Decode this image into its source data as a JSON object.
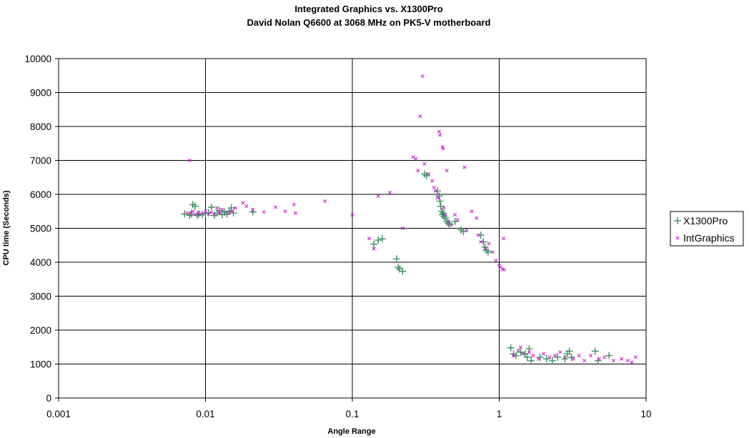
{
  "chart_data": {
    "type": "scatter",
    "title": "Integrated Graphics vs. X1300Pro",
    "subtitle": "David Nolan Q6600 at 3068 MHz on PK5-V motherboard",
    "xlabel": "Angle Range",
    "ylabel": "CPU time (Seconds)",
    "x_scale": "log",
    "xlim": [
      0.001,
      10
    ],
    "ylim": [
      0,
      10000
    ],
    "x_ticks": [
      0.001,
      0.01,
      0.1,
      1,
      10
    ],
    "x_tick_labels": [
      "0.001",
      "0.01",
      "0.1",
      "1",
      "10"
    ],
    "y_ticks": [
      0,
      1000,
      2000,
      3000,
      4000,
      5000,
      6000,
      7000,
      8000,
      9000,
      10000
    ],
    "y_tick_labels": [
      "0",
      "1000",
      "2000",
      "3000",
      "4000",
      "5000",
      "6000",
      "7000",
      "8000",
      "9000",
      "10000"
    ],
    "grid": true,
    "legend_position": "right",
    "series": [
      {
        "name": "X1300Pro",
        "marker": "plus",
        "color": "#2e8b57",
        "points": [
          [
            0.0072,
            5420
          ],
          [
            0.0078,
            5380
          ],
          [
            0.008,
            5420
          ],
          [
            0.0082,
            5700
          ],
          [
            0.0085,
            5650
          ],
          [
            0.0088,
            5380
          ],
          [
            0.009,
            5420
          ],
          [
            0.0095,
            5400
          ],
          [
            0.01,
            5440
          ],
          [
            0.0105,
            5460
          ],
          [
            0.011,
            5620
          ],
          [
            0.0115,
            5380
          ],
          [
            0.012,
            5450
          ],
          [
            0.0125,
            5520
          ],
          [
            0.013,
            5400
          ],
          [
            0.0135,
            5480
          ],
          [
            0.014,
            5420
          ],
          [
            0.0145,
            5500
          ],
          [
            0.015,
            5600
          ],
          [
            0.0155,
            5450
          ],
          [
            0.021,
            5480
          ],
          [
            0.14,
            4530
          ],
          [
            0.15,
            4650
          ],
          [
            0.16,
            4690
          ],
          [
            0.2,
            4100
          ],
          [
            0.205,
            3850
          ],
          [
            0.21,
            3800
          ],
          [
            0.22,
            3730
          ],
          [
            0.31,
            6600
          ],
          [
            0.32,
            6550
          ],
          [
            0.38,
            6100
          ],
          [
            0.39,
            5950
          ],
          [
            0.395,
            5800
          ],
          [
            0.4,
            5650
          ],
          [
            0.405,
            5500
          ],
          [
            0.41,
            5400
          ],
          [
            0.415,
            5450
          ],
          [
            0.42,
            5350
          ],
          [
            0.43,
            5300
          ],
          [
            0.44,
            5200
          ],
          [
            0.45,
            5150
          ],
          [
            0.46,
            5100
          ],
          [
            0.5,
            5200
          ],
          [
            0.55,
            4950
          ],
          [
            0.57,
            4900
          ],
          [
            0.75,
            4800
          ],
          [
            0.78,
            4600
          ],
          [
            0.8,
            4450
          ],
          [
            0.82,
            4350
          ],
          [
            0.84,
            4300
          ],
          [
            1.2,
            1480
          ],
          [
            1.25,
            1300
          ],
          [
            1.3,
            1250
          ],
          [
            1.4,
            1350
          ],
          [
            1.5,
            1300
          ],
          [
            1.55,
            1200
          ],
          [
            1.6,
            1450
          ],
          [
            1.65,
            1100
          ],
          [
            1.9,
            1200
          ],
          [
            2.1,
            1150
          ],
          [
            2.3,
            1100
          ],
          [
            2.5,
            1200
          ],
          [
            2.8,
            1150
          ],
          [
            2.9,
            1300
          ],
          [
            3.0,
            1380
          ],
          [
            3.1,
            1200
          ],
          [
            4.5,
            1380
          ],
          [
            4.7,
            1100
          ],
          [
            5.6,
            1250
          ]
        ]
      },
      {
        "name": "IntGraphics",
        "marker": "x",
        "color": "#cc33cc",
        "points": [
          [
            0.0075,
            5450
          ],
          [
            0.0078,
            7000
          ],
          [
            0.008,
            5450
          ],
          [
            0.0082,
            5500
          ],
          [
            0.0085,
            5400
          ],
          [
            0.009,
            5460
          ],
          [
            0.0095,
            5420
          ],
          [
            0.01,
            5500
          ],
          [
            0.0105,
            5420
          ],
          [
            0.011,
            5470
          ],
          [
            0.0115,
            5400
          ],
          [
            0.012,
            5600
          ],
          [
            0.0125,
            5450
          ],
          [
            0.013,
            5550
          ],
          [
            0.014,
            5440
          ],
          [
            0.015,
            5500
          ],
          [
            0.016,
            5600
          ],
          [
            0.018,
            5750
          ],
          [
            0.019,
            5650
          ],
          [
            0.021,
            5550
          ],
          [
            0.025,
            5480
          ],
          [
            0.03,
            5620
          ],
          [
            0.035,
            5500
          ],
          [
            0.04,
            5700
          ],
          [
            0.041,
            5450
          ],
          [
            0.065,
            5800
          ],
          [
            0.1,
            5400
          ],
          [
            0.13,
            4700
          ],
          [
            0.14,
            4400
          ],
          [
            0.15,
            5950
          ],
          [
            0.18,
            6050
          ],
          [
            0.22,
            5000
          ],
          [
            0.26,
            7100
          ],
          [
            0.27,
            7050
          ],
          [
            0.28,
            6700
          ],
          [
            0.29,
            8300
          ],
          [
            0.3,
            9480
          ],
          [
            0.31,
            6900
          ],
          [
            0.33,
            6600
          ],
          [
            0.35,
            6400
          ],
          [
            0.36,
            6200
          ],
          [
            0.37,
            6100
          ],
          [
            0.38,
            5900
          ],
          [
            0.39,
            7850
          ],
          [
            0.395,
            7750
          ],
          [
            0.41,
            7400
          ],
          [
            0.415,
            7350
          ],
          [
            0.42,
            5600
          ],
          [
            0.43,
            5400
          ],
          [
            0.44,
            6700
          ],
          [
            0.45,
            5200
          ],
          [
            0.47,
            5100
          ],
          [
            0.5,
            5400
          ],
          [
            0.52,
            5250
          ],
          [
            0.58,
            6800
          ],
          [
            0.6,
            4950
          ],
          [
            0.65,
            5500
          ],
          [
            0.7,
            5300
          ],
          [
            0.72,
            4800
          ],
          [
            0.75,
            4600
          ],
          [
            0.8,
            4400
          ],
          [
            0.85,
            4550
          ],
          [
            0.9,
            4300
          ],
          [
            0.95,
            4050
          ],
          [
            1.0,
            3900
          ],
          [
            1.02,
            3850
          ],
          [
            1.05,
            3800
          ],
          [
            1.07,
            4700
          ],
          [
            1.08,
            3780
          ],
          [
            1.25,
            1250
          ],
          [
            1.35,
            1400
          ],
          [
            1.4,
            1500
          ],
          [
            1.45,
            1300
          ],
          [
            1.6,
            1350
          ],
          [
            1.7,
            1250
          ],
          [
            1.85,
            1150
          ],
          [
            2.0,
            1300
          ],
          [
            2.2,
            1200
          ],
          [
            2.4,
            1250
          ],
          [
            2.6,
            1350
          ],
          [
            2.8,
            1200
          ],
          [
            3.2,
            1150
          ],
          [
            3.5,
            1250
          ],
          [
            3.8,
            1100
          ],
          [
            4.2,
            1250
          ],
          [
            4.8,
            1150
          ],
          [
            5.2,
            1200
          ],
          [
            6.0,
            1100
          ],
          [
            6.8,
            1150
          ],
          [
            7.5,
            1100
          ],
          [
            8.0,
            1050
          ],
          [
            8.5,
            1200
          ]
        ]
      }
    ]
  }
}
